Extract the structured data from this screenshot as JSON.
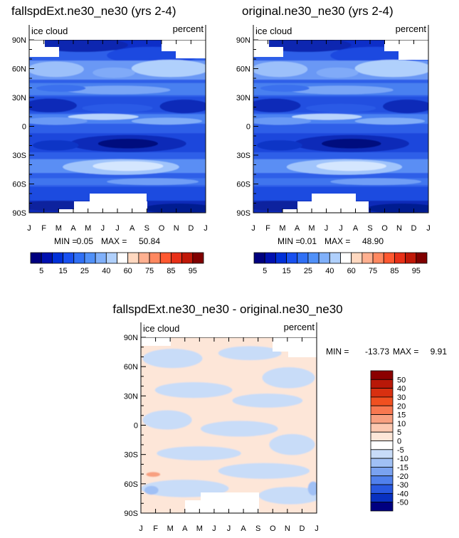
{
  "months": [
    "J",
    "F",
    "M",
    "A",
    "M",
    "J",
    "J",
    "A",
    "S",
    "O",
    "N",
    "D",
    "J"
  ],
  "lat_labels": [
    "90N",
    "60N",
    "30N",
    "0",
    "30S",
    "60S",
    "90S"
  ],
  "chart_data": [
    {
      "type": "heatmap",
      "title": "fallspdExt.ne30_ne30 (yrs 2-4)",
      "variable": "ice cloud",
      "units": "percent",
      "stats": {
        "min_label": "MIN =",
        "min": "0.05",
        "max_label": "MAX =",
        "max": "50.84"
      },
      "colorbar_labels": [
        "5",
        "15",
        "25",
        "40",
        "60",
        "75",
        "85",
        "95"
      ],
      "colorbar_colors": [
        "#00007f",
        "#0010b0",
        "#0030d8",
        "#1850f0",
        "#3070f5",
        "#5090f8",
        "#80b0fa",
        "#b0d0fc",
        "#ffffff",
        "#ffd8c0",
        "#ffb090",
        "#ff8860",
        "#ff5830",
        "#e83018",
        "#c01808",
        "#800000"
      ]
    },
    {
      "type": "heatmap",
      "title": "original.ne30_ne30 (yrs 2-4)",
      "variable": "ice cloud",
      "units": "percent",
      "stats": {
        "min_label": "MIN =",
        "min": "0.01",
        "max_label": "MAX =",
        "max": "48.90"
      },
      "colorbar_labels": [
        "5",
        "15",
        "25",
        "40",
        "60",
        "75",
        "85",
        "95"
      ],
      "colorbar_colors": [
        "#00007f",
        "#0010b0",
        "#0030d8",
        "#1850f0",
        "#3070f5",
        "#5090f8",
        "#80b0fa",
        "#b0d0fc",
        "#ffffff",
        "#ffd8c0",
        "#ffb090",
        "#ff8860",
        "#ff5830",
        "#e83018",
        "#c01808",
        "#800000"
      ]
    },
    {
      "type": "heatmap",
      "title": "fallspdExt.ne30_ne30 - original.ne30_ne30",
      "variable": "ice cloud",
      "units": "percent",
      "stats": {
        "min_label": "MIN =",
        "min": "-13.73",
        "max_label": "MAX =",
        "max": "9.91"
      },
      "colorbar_labels": [
        "50",
        "40",
        "30",
        "20",
        "15",
        "10",
        "5",
        "0",
        "-5",
        "-10",
        "-15",
        "-20",
        "-30",
        "-40",
        "-50"
      ],
      "colorbar_colors": [
        "#8b0000",
        "#b81808",
        "#d83010",
        "#f05020",
        "#f87850",
        "#f8a080",
        "#fcc8b0",
        "#fde6d8",
        "#ffffff",
        "#c8dcf8",
        "#a0c0f5",
        "#7aa2f0",
        "#5080ec",
        "#2858e0",
        "#0830c0",
        "#000080"
      ]
    }
  ]
}
